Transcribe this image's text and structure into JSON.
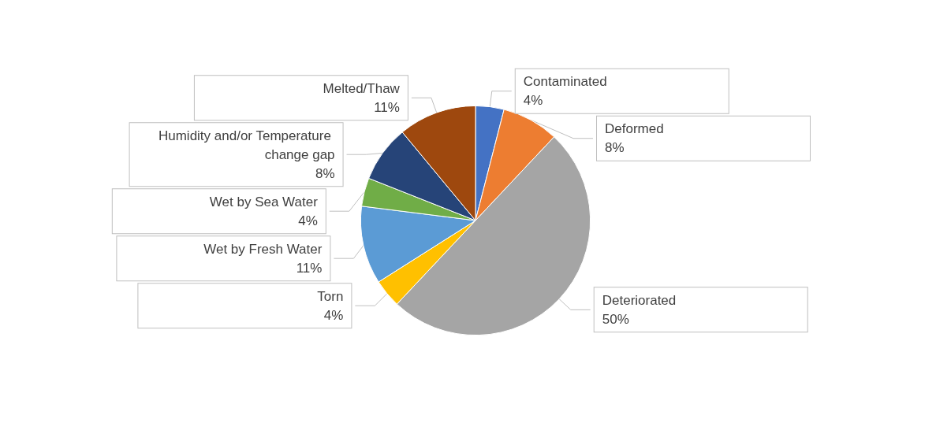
{
  "chart_data": {
    "type": "pie",
    "categories": [
      "Contaminated",
      "Deformed",
      "Deteriorated",
      "Torn",
      "Wet by Fresh Water",
      "Wet by Sea Water",
      "Humidity and/or Temperature change gap",
      "Melted/Thaw"
    ],
    "values": [
      4,
      8,
      50,
      4,
      11,
      4,
      8,
      11
    ],
    "value_labels": [
      "4%",
      "8%",
      "50%",
      "4%",
      "11%",
      "4%",
      "8%",
      "11%"
    ],
    "colors": [
      "#4472c4",
      "#ed7d31",
      "#a5a5a5",
      "#ffc000",
      "#5b9bd5",
      "#70ad47",
      "#264478",
      "#9e480e"
    ],
    "legend": false
  }
}
